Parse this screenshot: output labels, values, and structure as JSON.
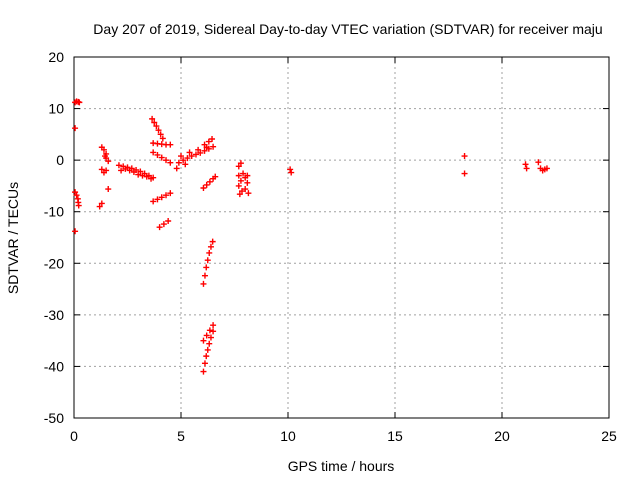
{
  "chart_data": {
    "type": "scatter",
    "title": "Day 207 of 2019, Sidereal Day-to-day VTEC variation (SDTVAR) for receiver maju",
    "xlabel": "GPS time / hours",
    "ylabel": "SDTVAR / TECUs",
    "xlim": [
      0,
      25
    ],
    "ylim": [
      -50,
      20
    ],
    "xticks": [
      0,
      5,
      10,
      15,
      20,
      25
    ],
    "yticks": [
      -50,
      -40,
      -30,
      -20,
      -10,
      0,
      10,
      20
    ],
    "xtick_labels": [
      "0",
      "5",
      "10",
      "15",
      "20",
      "25"
    ],
    "ytick_labels": [
      "-50",
      "-40",
      "-30",
      "-20",
      "-10",
      "0",
      "10",
      "20"
    ],
    "grid": true,
    "marker": "+",
    "color": "#ff0000",
    "series": [
      {
        "name": "SDTVAR",
        "points": [
          [
            0.05,
            11.2
          ],
          [
            0.12,
            11.4
          ],
          [
            0.2,
            11.3
          ],
          [
            0.25,
            11.2
          ],
          [
            0.05,
            6.2
          ],
          [
            0.05,
            -6.2
          ],
          [
            0.12,
            -6.8
          ],
          [
            0.18,
            -7.5
          ],
          [
            0.2,
            -8.2
          ],
          [
            0.22,
            -8.8
          ],
          [
            0.05,
            -13.8
          ],
          [
            1.3,
            2.5
          ],
          [
            1.4,
            2.0
          ],
          [
            1.5,
            1.2
          ],
          [
            1.5,
            0.4
          ],
          [
            1.6,
            -0.2
          ],
          [
            1.45,
            0.8
          ],
          [
            1.3,
            -1.8
          ],
          [
            1.4,
            -2.4
          ],
          [
            1.5,
            -2.0
          ],
          [
            1.6,
            -5.6
          ],
          [
            1.2,
            -9.0
          ],
          [
            1.3,
            -8.4
          ],
          [
            2.1,
            -1.0
          ],
          [
            2.3,
            -1.2
          ],
          [
            2.5,
            -1.4
          ],
          [
            2.7,
            -1.6
          ],
          [
            2.9,
            -1.9
          ],
          [
            3.1,
            -2.2
          ],
          [
            3.3,
            -2.6
          ],
          [
            3.5,
            -3.0
          ],
          [
            3.7,
            -3.4
          ],
          [
            2.4,
            -1.7
          ],
          [
            2.8,
            -2.3
          ],
          [
            3.2,
            -3.0
          ],
          [
            3.6,
            -3.6
          ],
          [
            2.2,
            -2.0
          ],
          [
            2.6,
            -2.0
          ],
          [
            3.0,
            -2.8
          ],
          [
            3.4,
            -3.2
          ],
          [
            3.7,
            -8.0
          ],
          [
            3.9,
            -7.6
          ],
          [
            4.1,
            -7.2
          ],
          [
            4.3,
            -6.8
          ],
          [
            4.5,
            -6.4
          ],
          [
            3.7,
            3.3
          ],
          [
            3.9,
            3.2
          ],
          [
            4.1,
            3.1
          ],
          [
            4.3,
            3.0
          ],
          [
            4.5,
            3.0
          ],
          [
            3.65,
            8.0
          ],
          [
            3.75,
            7.3
          ],
          [
            3.85,
            6.6
          ],
          [
            3.95,
            5.8
          ],
          [
            4.05,
            5.0
          ],
          [
            4.15,
            4.2
          ],
          [
            3.7,
            1.5
          ],
          [
            3.9,
            1.0
          ],
          [
            4.1,
            0.5
          ],
          [
            4.3,
            0.0
          ],
          [
            4.5,
            -0.5
          ],
          [
            4.0,
            -13.0
          ],
          [
            4.2,
            -12.4
          ],
          [
            4.4,
            -11.8
          ],
          [
            4.9,
            -0.5
          ],
          [
            5.1,
            0.0
          ],
          [
            5.3,
            0.4
          ],
          [
            5.5,
            0.8
          ],
          [
            5.7,
            1.1
          ],
          [
            5.9,
            1.4
          ],
          [
            6.1,
            1.8
          ],
          [
            6.3,
            2.2
          ],
          [
            6.5,
            2.6
          ],
          [
            5.0,
            0.8
          ],
          [
            5.4,
            1.5
          ],
          [
            5.8,
            2.0
          ],
          [
            6.2,
            2.5
          ],
          [
            4.8,
            -1.6
          ],
          [
            5.2,
            -0.8
          ],
          [
            6.1,
            3.0
          ],
          [
            6.3,
            3.6
          ],
          [
            6.45,
            4.1
          ],
          [
            6.05,
            -5.4
          ],
          [
            6.2,
            -4.8
          ],
          [
            6.35,
            -4.2
          ],
          [
            6.5,
            -3.6
          ],
          [
            6.6,
            -3.2
          ],
          [
            6.05,
            -24.0
          ],
          [
            6.12,
            -22.4
          ],
          [
            6.18,
            -20.8
          ],
          [
            6.25,
            -19.4
          ],
          [
            6.32,
            -18.0
          ],
          [
            6.4,
            -16.8
          ],
          [
            6.48,
            -15.8
          ],
          [
            6.05,
            -41.0
          ],
          [
            6.12,
            -39.4
          ],
          [
            6.18,
            -38.0
          ],
          [
            6.25,
            -36.8
          ],
          [
            6.32,
            -35.6
          ],
          [
            6.4,
            -34.4
          ],
          [
            6.5,
            -33.2
          ],
          [
            6.05,
            -35.0
          ],
          [
            6.2,
            -34.0
          ],
          [
            6.35,
            -33.0
          ],
          [
            6.5,
            -32.0
          ],
          [
            7.8,
            -0.6
          ],
          [
            7.7,
            -1.2
          ],
          [
            7.7,
            -3.0
          ],
          [
            7.8,
            -4.0
          ],
          [
            7.7,
            -5.0
          ],
          [
            7.85,
            -6.0
          ],
          [
            7.75,
            -6.6
          ],
          [
            8.0,
            -3.4
          ],
          [
            8.1,
            -4.4
          ],
          [
            8.0,
            -5.6
          ],
          [
            8.15,
            -6.4
          ],
          [
            7.9,
            -2.6
          ],
          [
            8.1,
            -3.0
          ],
          [
            10.1,
            -1.8
          ],
          [
            10.15,
            -2.4
          ],
          [
            18.25,
            0.8
          ],
          [
            18.25,
            -2.6
          ],
          [
            21.1,
            -0.8
          ],
          [
            21.15,
            -1.6
          ],
          [
            21.7,
            -0.4
          ],
          [
            21.8,
            -1.6
          ],
          [
            21.9,
            -2.0
          ],
          [
            22.0,
            -1.8
          ],
          [
            22.1,
            -1.6
          ]
        ]
      }
    ]
  }
}
